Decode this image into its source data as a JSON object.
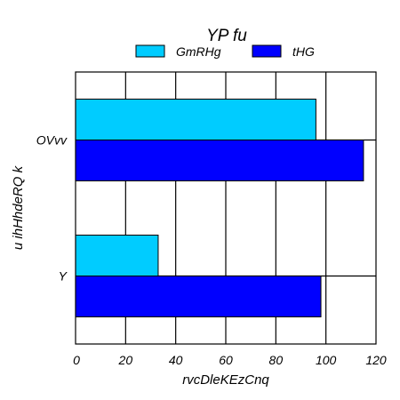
{
  "chart_data": {
    "type": "bar",
    "orientation": "horizontal",
    "title": "YP fu",
    "xlabel": "rvcDleKEzCnq",
    "ylabel": "u ihHhdeRQ k",
    "categories": [
      "OVvv",
      "Y"
    ],
    "series": [
      {
        "name": "GmRHg",
        "color": "#00ccff",
        "values": [
          96,
          33
        ]
      },
      {
        "name": "tHG",
        "color": "#0000ff",
        "values": [
          115,
          98
        ]
      }
    ],
    "xlim": [
      0,
      120
    ],
    "xticks": [
      "0",
      "20",
      "40",
      "60",
      "80",
      "100",
      "120"
    ],
    "grid": true,
    "legend": "top"
  }
}
